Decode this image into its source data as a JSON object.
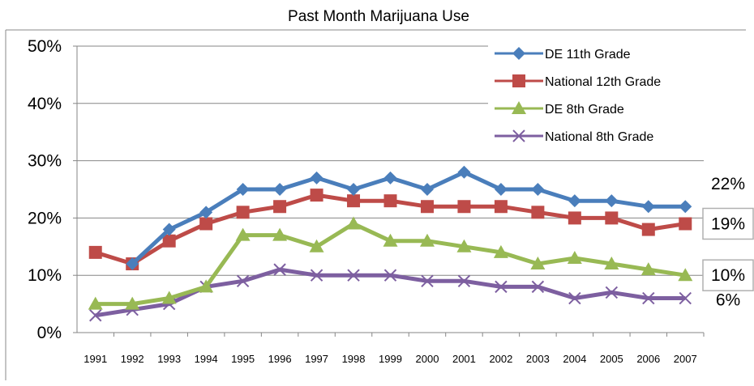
{
  "chart_data": {
    "type": "line",
    "title": "Past Month Marijuana Use",
    "xlabel": "",
    "ylabel": "",
    "ylim": [
      0,
      50
    ],
    "ytick_labels": [
      "0%",
      "10%",
      "20%",
      "30%",
      "40%",
      "50%"
    ],
    "x": [
      "1991",
      "1992",
      "1993",
      "1994",
      "1995",
      "1996",
      "1997",
      "1998",
      "1999",
      "2000",
      "2001",
      "2002",
      "2003",
      "2004",
      "2005",
      "2006",
      "2007"
    ],
    "grid": true,
    "legend_position": "top-right",
    "series": [
      {
        "name": "DE 11th Grade",
        "color": "#4a7ebb",
        "marker": "diamond",
        "values": [
          null,
          12,
          18,
          21,
          25,
          25,
          27,
          25,
          27,
          25,
          28,
          25,
          25,
          23,
          23,
          22,
          22
        ]
      },
      {
        "name": "National 12th Grade",
        "color": "#be4b48",
        "marker": "square",
        "values": [
          14,
          12,
          16,
          19,
          21,
          22,
          24,
          23,
          23,
          22,
          22,
          22,
          21,
          20,
          20,
          18,
          19
        ]
      },
      {
        "name": "DE 8th Grade",
        "color": "#98b954",
        "marker": "triangle",
        "values": [
          5,
          5,
          6,
          8,
          17,
          17,
          15,
          19,
          16,
          16,
          15,
          14,
          12,
          13,
          12,
          11,
          10
        ]
      },
      {
        "name": "National 8th Grade",
        "color": "#7d5fa0",
        "marker": "x",
        "values": [
          3,
          4,
          5,
          8,
          9,
          11,
          10,
          10,
          10,
          9,
          9,
          8,
          8,
          6,
          7,
          6,
          6
        ]
      }
    ],
    "end_labels": [
      {
        "text": "22%",
        "boxed": false
      },
      {
        "text": "19%",
        "boxed": true
      },
      {
        "text": "10%",
        "boxed": true
      },
      {
        "text": "6%",
        "boxed": false
      }
    ]
  }
}
